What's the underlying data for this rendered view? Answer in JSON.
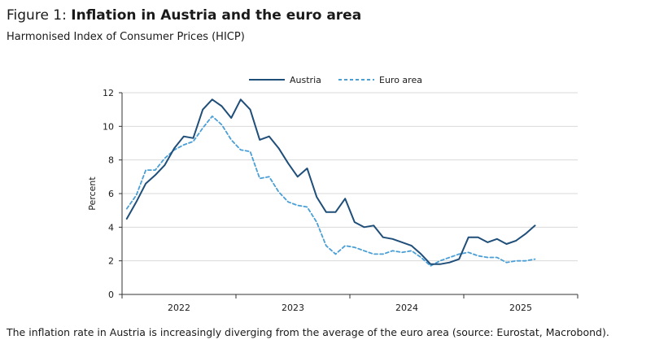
{
  "figure": {
    "prefix": "Figure 1: ",
    "title": "Inflation in Austria and the euro area",
    "subtitle": "Harmonised Index of Consumer Prices (HICP)",
    "caption": "The inflation rate in Austria is increasingly diverging from the average of the euro area (source: Eurostat, Macrobond)."
  },
  "colors": {
    "austria": "#1f4e79",
    "euro_area": "#4a9fd6",
    "grid": "#d9d9d9",
    "axis": "#333333"
  },
  "chart_data": {
    "type": "line",
    "title": "",
    "xlabel": "",
    "ylabel": "Percent",
    "ylim": [
      0,
      12
    ],
    "yticks": [
      0,
      2,
      4,
      6,
      8,
      10,
      12
    ],
    "x_period": {
      "start": "2022-01",
      "end": "2025-12",
      "frequency": "monthly"
    },
    "year_labels": [
      "2022",
      "2023",
      "2024",
      "2025"
    ],
    "grid": "horizontal",
    "legend_position": "top-center",
    "series": [
      {
        "name": "Austria",
        "style": "solid",
        "x": [
          "2022-01",
          "2022-02",
          "2022-03",
          "2022-04",
          "2022-05",
          "2022-06",
          "2022-07",
          "2022-08",
          "2022-09",
          "2022-10",
          "2022-11",
          "2022-12",
          "2023-01",
          "2023-02",
          "2023-03",
          "2023-04",
          "2023-05",
          "2023-06",
          "2023-07",
          "2023-08",
          "2023-09",
          "2023-10",
          "2023-11",
          "2023-12",
          "2024-01",
          "2024-02",
          "2024-03",
          "2024-04",
          "2024-05",
          "2024-06",
          "2024-07",
          "2024-08",
          "2024-09",
          "2024-10",
          "2024-11",
          "2024-12",
          "2025-01",
          "2025-02",
          "2025-03",
          "2025-04",
          "2025-05",
          "2025-06",
          "2025-07",
          "2025-08"
        ],
        "values": [
          4.5,
          5.5,
          6.6,
          7.1,
          7.7,
          8.7,
          9.4,
          9.3,
          11.0,
          11.6,
          11.2,
          10.5,
          11.6,
          11.0,
          9.2,
          9.4,
          8.7,
          7.8,
          7.0,
          7.5,
          5.8,
          4.9,
          4.9,
          5.7,
          4.3,
          4.0,
          4.1,
          3.4,
          3.3,
          3.1,
          2.9,
          2.4,
          1.8,
          1.8,
          1.9,
          2.1,
          3.4,
          3.4,
          3.1,
          3.3,
          3.0,
          3.2,
          3.6,
          4.1
        ]
      },
      {
        "name": "Euro area",
        "style": "dashed",
        "x": [
          "2022-01",
          "2022-02",
          "2022-03",
          "2022-04",
          "2022-05",
          "2022-06",
          "2022-07",
          "2022-08",
          "2022-09",
          "2022-10",
          "2022-11",
          "2022-12",
          "2023-01",
          "2023-02",
          "2023-03",
          "2023-04",
          "2023-05",
          "2023-06",
          "2023-07",
          "2023-08",
          "2023-09",
          "2023-10",
          "2023-11",
          "2023-12",
          "2024-01",
          "2024-02",
          "2024-03",
          "2024-04",
          "2024-05",
          "2024-06",
          "2024-07",
          "2024-08",
          "2024-09",
          "2024-10",
          "2024-11",
          "2024-12",
          "2025-01",
          "2025-02",
          "2025-03",
          "2025-04",
          "2025-05",
          "2025-06",
          "2025-07",
          "2025-08"
        ],
        "values": [
          5.1,
          5.9,
          7.4,
          7.4,
          8.1,
          8.6,
          8.9,
          9.1,
          9.9,
          10.6,
          10.1,
          9.2,
          8.6,
          8.5,
          6.9,
          7.0,
          6.1,
          5.5,
          5.3,
          5.2,
          4.3,
          2.9,
          2.4,
          2.9,
          2.8,
          2.6,
          2.4,
          2.4,
          2.6,
          2.5,
          2.6,
          2.2,
          1.7,
          2.0,
          2.2,
          2.4,
          2.5,
          2.3,
          2.2,
          2.2,
          1.9,
          2.0,
          2.0,
          2.1
        ]
      }
    ]
  }
}
